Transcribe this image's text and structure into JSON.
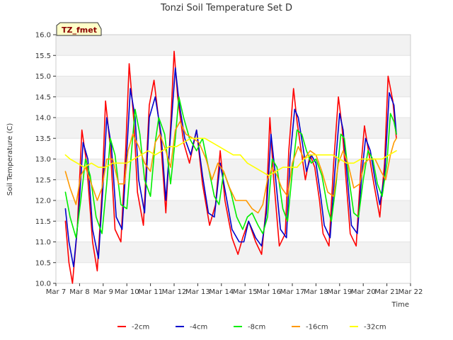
{
  "chart_data": {
    "type": "line",
    "title": "Tonzi Soil Temperature Set D",
    "xlabel": "Time",
    "ylabel": "Soil Temperature (C)",
    "badge": "TZ_fmet",
    "ylim": [
      10.0,
      16.0
    ],
    "yticks": [
      10.0,
      10.5,
      11.0,
      11.5,
      12.0,
      12.5,
      13.0,
      13.5,
      14.0,
      14.5,
      15.0,
      15.5,
      16.0
    ],
    "ytick_labels": [
      "10.0",
      "10.5",
      "11.0",
      "11.5",
      "12.0",
      "12.5",
      "13.0",
      "13.5",
      "14.0",
      "14.5",
      "15.0",
      "15.5",
      "16.0"
    ],
    "xlim": [
      0,
      15
    ],
    "xticks": [
      0,
      1,
      2,
      3,
      4,
      5,
      6,
      7,
      8,
      9,
      10,
      11,
      12,
      13,
      14,
      15
    ],
    "xtick_labels": [
      "Mar 7",
      "Mar 8",
      "Mar 9",
      "Mar 10",
      "Mar 11",
      "Mar 12",
      "Mar 13",
      "Mar 14",
      "Mar 15",
      "Mar 16",
      "Mar 17",
      "Mar 18",
      "Mar 19",
      "Mar 20",
      "Mar 21",
      "Mar 22"
    ],
    "grid": "horizontal bands",
    "legend_position": "bottom",
    "series": [
      {
        "name": "-2cm",
        "color": "#ff0000",
        "x": [
          0.4,
          0.55,
          0.7,
          0.9,
          1.1,
          1.3,
          1.55,
          1.75,
          1.95,
          2.1,
          2.3,
          2.5,
          2.75,
          2.95,
          3.1,
          3.3,
          3.45,
          3.7,
          3.95,
          4.15,
          4.4,
          4.65,
          4.85,
          5.0,
          5.15,
          5.4,
          5.65,
          5.95,
          6.2,
          6.5,
          6.75,
          6.95,
          7.15,
          7.45,
          7.7,
          7.9,
          8.15,
          8.45,
          8.7,
          8.9,
          9.05,
          9.2,
          9.45,
          9.7,
          9.85,
          10.05,
          10.2,
          10.4,
          10.55,
          10.75,
          10.95,
          11.15,
          11.3,
          11.55,
          11.75,
          11.95,
          12.1,
          12.3,
          12.45,
          12.7,
          12.9,
          13.05,
          13.25,
          13.45,
          13.7,
          13.9,
          14.05,
          14.25,
          14.4
        ],
        "y": [
          11.5,
          10.5,
          10.0,
          11.3,
          13.7,
          12.9,
          11.0,
          10.3,
          12.2,
          14.4,
          13.3,
          11.3,
          11.0,
          13.2,
          15.3,
          13.9,
          12.2,
          11.4,
          14.3,
          14.9,
          13.7,
          11.7,
          13.8,
          15.6,
          14.5,
          13.4,
          12.9,
          13.7,
          12.4,
          11.4,
          11.9,
          13.2,
          12.0,
          11.1,
          10.7,
          11.1,
          11.5,
          11.0,
          10.7,
          11.9,
          14.0,
          12.6,
          10.9,
          11.2,
          13.2,
          14.7,
          13.9,
          13.1,
          12.5,
          13.1,
          12.8,
          12.0,
          11.2,
          10.9,
          12.9,
          14.5,
          13.8,
          12.3,
          11.2,
          10.9,
          12.8,
          13.8,
          13.1,
          12.4,
          11.6,
          12.9,
          15.0,
          14.4,
          13.5
        ]
      },
      {
        "name": "-4cm",
        "color": "#0000cc",
        "x": [
          0.4,
          0.55,
          0.75,
          0.95,
          1.15,
          1.35,
          1.55,
          1.8,
          2.0,
          2.15,
          2.35,
          2.55,
          2.8,
          3.0,
          3.15,
          3.35,
          3.5,
          3.75,
          3.95,
          4.2,
          4.45,
          4.65,
          4.85,
          5.05,
          5.2,
          5.45,
          5.7,
          5.95,
          6.2,
          6.45,
          6.7,
          6.95,
          7.2,
          7.45,
          7.75,
          7.95,
          8.15,
          8.45,
          8.7,
          8.9,
          9.1,
          9.25,
          9.5,
          9.75,
          9.9,
          10.1,
          10.25,
          10.45,
          10.6,
          10.8,
          11.0,
          11.2,
          11.35,
          11.6,
          11.8,
          12.0,
          12.15,
          12.35,
          12.5,
          12.75,
          12.95,
          13.1,
          13.3,
          13.5,
          13.7,
          13.9,
          14.1,
          14.3,
          14.4
        ],
        "y": [
          11.8,
          11.0,
          10.4,
          11.6,
          13.4,
          13.0,
          11.3,
          10.6,
          12.4,
          14.0,
          13.3,
          11.6,
          11.3,
          13.2,
          14.7,
          14.0,
          12.5,
          11.7,
          14.0,
          14.5,
          13.6,
          12.0,
          13.6,
          15.2,
          14.4,
          13.5,
          13.1,
          13.7,
          12.6,
          11.7,
          11.6,
          12.9,
          12.1,
          11.3,
          11.0,
          11.0,
          11.5,
          11.1,
          10.9,
          11.7,
          13.6,
          12.8,
          11.3,
          11.1,
          13.0,
          14.2,
          14.0,
          13.3,
          12.7,
          13.1,
          12.9,
          12.1,
          11.4,
          11.1,
          12.7,
          14.1,
          13.7,
          12.4,
          11.4,
          11.2,
          12.7,
          13.5,
          13.2,
          12.5,
          11.9,
          12.6,
          14.6,
          14.3,
          13.6
        ]
      },
      {
        "name": "-8cm",
        "color": "#00ee00",
        "x": [
          0.4,
          0.6,
          0.85,
          1.05,
          1.25,
          1.45,
          1.7,
          1.95,
          2.15,
          2.3,
          2.5,
          2.75,
          3.0,
          3.2,
          3.35,
          3.55,
          3.75,
          4.0,
          4.2,
          4.35,
          4.6,
          4.85,
          5.05,
          5.2,
          5.4,
          5.65,
          5.95,
          6.2,
          6.45,
          6.7,
          6.9,
          7.1,
          7.4,
          7.65,
          7.9,
          8.1,
          8.3,
          8.55,
          8.75,
          8.95,
          9.15,
          9.35,
          9.6,
          9.8,
          10.0,
          10.2,
          10.4,
          10.6,
          10.8,
          11.0,
          11.25,
          11.5,
          11.65,
          11.85,
          12.05,
          12.2,
          12.4,
          12.6,
          12.8,
          13.0,
          13.2,
          13.4,
          13.6,
          13.8,
          14.0,
          14.15,
          14.3,
          14.4
        ],
        "y": [
          12.2,
          11.6,
          11.1,
          12.0,
          13.0,
          12.6,
          11.6,
          11.2,
          12.4,
          13.5,
          13.1,
          11.9,
          11.8,
          13.2,
          14.2,
          13.6,
          12.5,
          12.1,
          13.4,
          14.0,
          13.6,
          12.4,
          13.5,
          14.5,
          14.0,
          13.5,
          13.2,
          13.5,
          12.8,
          12.1,
          11.9,
          12.7,
          12.2,
          11.6,
          11.3,
          11.6,
          11.7,
          11.4,
          11.2,
          11.6,
          13.0,
          12.8,
          11.8,
          11.5,
          12.7,
          13.7,
          13.6,
          13.2,
          12.9,
          13.0,
          12.6,
          11.8,
          11.5,
          12.4,
          13.6,
          13.5,
          12.5,
          11.7,
          11.6,
          12.5,
          13.2,
          13.0,
          12.4,
          12.1,
          12.9,
          14.1,
          13.9,
          13.6
        ]
      },
      {
        "name": "-16cm",
        "color": "#ff9900",
        "x": [
          0.4,
          0.6,
          0.85,
          1.05,
          1.25,
          1.5,
          1.75,
          1.95,
          2.15,
          2.4,
          2.65,
          2.9,
          3.05,
          3.25,
          3.5,
          3.75,
          4.0,
          4.2,
          4.4,
          4.65,
          4.85,
          5.05,
          5.25,
          5.5,
          5.8,
          6.05,
          6.35,
          6.6,
          6.85,
          7.1,
          7.35,
          7.6,
          7.85,
          8.05,
          8.3,
          8.55,
          8.75,
          8.95,
          9.15,
          9.35,
          9.55,
          9.8,
          10.0,
          10.25,
          10.5,
          10.75,
          11.0,
          11.25,
          11.5,
          11.75,
          11.95,
          12.15,
          12.35,
          12.6,
          12.85,
          13.05,
          13.25,
          13.5,
          13.75,
          13.95,
          14.15,
          14.3,
          14.4
        ],
        "y": [
          12.7,
          12.3,
          11.9,
          12.6,
          12.8,
          12.4,
          12.0,
          12.3,
          13.0,
          13.0,
          12.4,
          12.4,
          13.2,
          13.6,
          13.3,
          12.9,
          12.7,
          13.4,
          13.6,
          13.2,
          12.8,
          13.7,
          13.9,
          13.6,
          13.5,
          13.4,
          13.0,
          12.5,
          12.9,
          12.7,
          12.3,
          12.0,
          12.0,
          12.0,
          11.8,
          11.7,
          11.9,
          12.5,
          12.8,
          12.6,
          12.3,
          12.1,
          12.9,
          13.3,
          13.0,
          13.2,
          13.1,
          12.7,
          12.2,
          12.1,
          12.9,
          13.2,
          12.9,
          12.3,
          12.4,
          12.9,
          13.0,
          13.0,
          12.7,
          12.5,
          13.1,
          13.4,
          13.5
        ]
      },
      {
        "name": "-32cm",
        "color": "#ffff00",
        "x": [
          0.4,
          0.6,
          0.9,
          1.2,
          1.5,
          1.8,
          2.1,
          2.4,
          2.7,
          3.0,
          3.3,
          3.6,
          3.9,
          4.2,
          4.5,
          4.8,
          5.1,
          5.4,
          5.7,
          6.0,
          6.3,
          6.6,
          6.9,
          7.2,
          7.5,
          7.8,
          8.1,
          8.4,
          8.7,
          9.0,
          9.3,
          9.6,
          9.9,
          10.2,
          10.5,
          10.8,
          11.1,
          11.4,
          11.7,
          12.0,
          12.3,
          12.6,
          12.9,
          13.2,
          13.5,
          13.8,
          14.1,
          14.4
        ],
        "y": [
          13.1,
          13.0,
          12.9,
          12.8,
          12.9,
          12.8,
          12.8,
          12.9,
          12.9,
          12.9,
          13.0,
          13.1,
          13.2,
          13.1,
          13.2,
          13.3,
          13.3,
          13.4,
          13.5,
          13.5,
          13.5,
          13.4,
          13.3,
          13.2,
          13.1,
          13.1,
          12.9,
          12.8,
          12.7,
          12.6,
          12.7,
          12.8,
          12.8,
          12.8,
          13.0,
          13.1,
          13.1,
          13.1,
          13.1,
          13.0,
          12.9,
          12.9,
          13.0,
          13.0,
          13.0,
          13.0,
          13.1,
          13.2
        ]
      }
    ]
  }
}
